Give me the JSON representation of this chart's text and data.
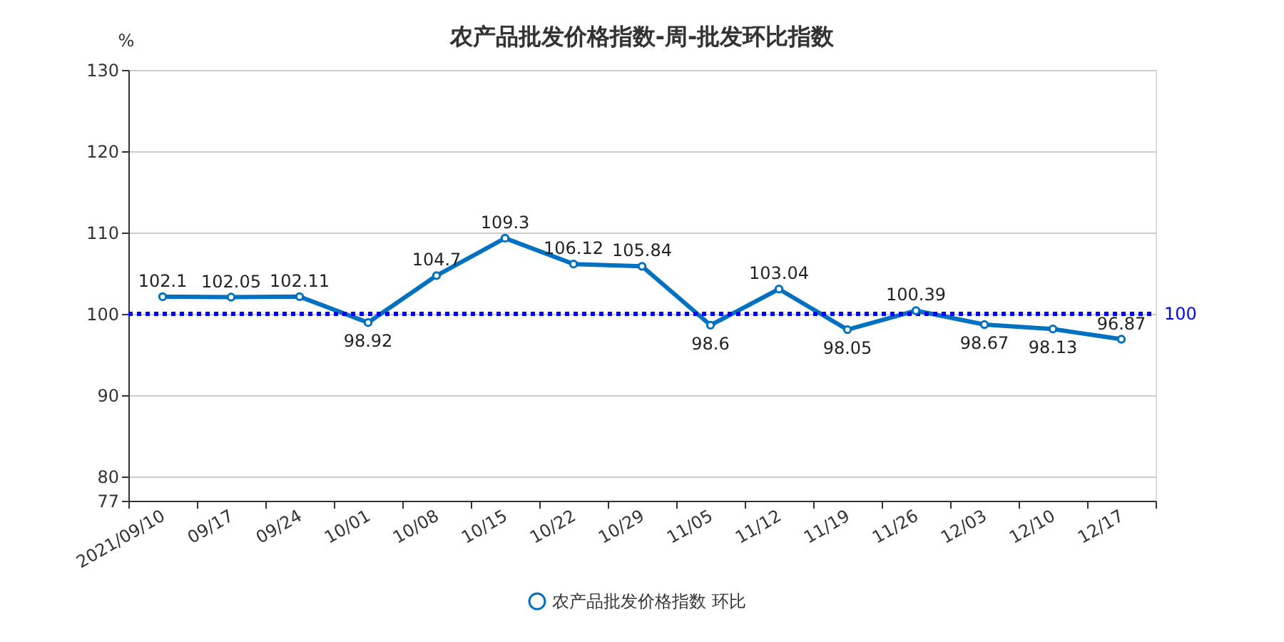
{
  "chart_data": {
    "type": "line",
    "title": "农产品批发价格指数-周-批发环比指数",
    "ylabel": "%",
    "categories": [
      "2021/09/10",
      "09/17",
      "09/24",
      "10/01",
      "10/08",
      "10/15",
      "10/22",
      "10/29",
      "11/05",
      "11/12",
      "11/19",
      "11/26",
      "12/03",
      "12/10",
      "12/17"
    ],
    "series": [
      {
        "name": "农产品批发价格指数 环比",
        "color": "#0070c0",
        "values": [
          102.1,
          102.05,
          102.11,
          98.92,
          104.7,
          109.3,
          106.12,
          105.84,
          98.6,
          103.04,
          98.05,
          100.39,
          98.67,
          98.13,
          96.87
        ]
      }
    ],
    "ylim": [
      77,
      130
    ],
    "yticks": [
      77,
      80,
      90,
      100,
      110,
      120,
      130
    ],
    "grid": "y",
    "legend": "bottom",
    "marker": "circle",
    "line_style": "solid",
    "data_labels": true,
    "ref_lines": [
      {
        "axis": "y",
        "value": 100,
        "label": "100",
        "color": "#0000ff",
        "line_style": "dotted"
      }
    ]
  }
}
